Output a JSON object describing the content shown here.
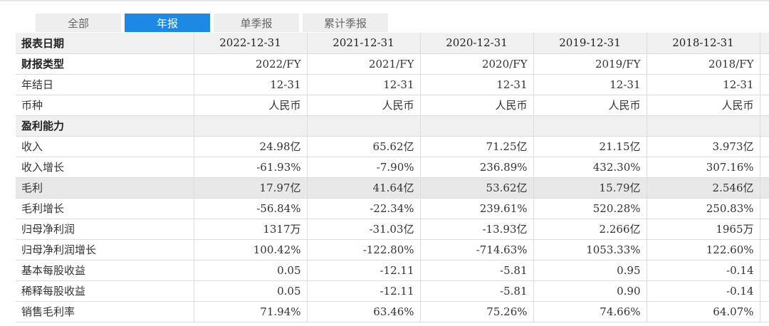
{
  "tabs": [
    {
      "label": "全部",
      "active": false
    },
    {
      "label": "年报",
      "active": true
    },
    {
      "label": "单季报",
      "active": false
    },
    {
      "label": "累计季报",
      "active": false
    }
  ],
  "table": {
    "header": {
      "label": "报表日期",
      "cols": [
        "2022-12-31",
        "2021-12-31",
        "2020-12-31",
        "2019-12-31",
        "2018-12-31"
      ]
    },
    "rows": [
      {
        "label": "财报类型",
        "values": [
          "2022/FY",
          "2021/FY",
          "2020/FY",
          "2019/FY",
          "2018/FY"
        ]
      },
      {
        "label": "年结日",
        "values": [
          "12-31",
          "12-31",
          "12-31",
          "12-31",
          "12-31"
        ]
      },
      {
        "label": "币种",
        "values": [
          "人民币",
          "人民币",
          "人民币",
          "人民币",
          "人民币"
        ]
      },
      {
        "label": "盈利能力",
        "values": [
          "",
          "",
          "",
          "",
          ""
        ]
      },
      {
        "label": "收入",
        "values": [
          "24.98亿",
          "65.62亿",
          "71.25亿",
          "21.15亿",
          "3.973亿"
        ]
      },
      {
        "label": "收入增长",
        "values": [
          "-61.93%",
          "-7.90%",
          "236.89%",
          "432.30%",
          "307.16%"
        ]
      },
      {
        "label": "毛利",
        "values": [
          "17.97亿",
          "41.64亿",
          "53.62亿",
          "15.79亿",
          "2.546亿"
        ]
      },
      {
        "label": "毛利增长",
        "values": [
          "-56.84%",
          "-22.34%",
          "239.61%",
          "520.28%",
          "250.83%"
        ]
      },
      {
        "label": "归母净利润",
        "values": [
          "1317万",
          "-31.03亿",
          "-13.93亿",
          "2.266亿",
          "1965万"
        ]
      },
      {
        "label": "归母净利润增长",
        "values": [
          "100.42%",
          "-122.80%",
          "-714.63%",
          "1053.33%",
          "122.60%"
        ]
      },
      {
        "label": "基本每股收益",
        "values": [
          "0.05",
          "-12.11",
          "-5.81",
          "0.95",
          "-0.14"
        ]
      },
      {
        "label": "稀释每股收益",
        "values": [
          "0.05",
          "-12.11",
          "-5.81",
          "0.90",
          "-0.14"
        ]
      },
      {
        "label": "销售毛利率",
        "values": [
          "71.94%",
          "63.46%",
          "75.26%",
          "74.66%",
          "64.07%"
        ]
      }
    ]
  }
}
